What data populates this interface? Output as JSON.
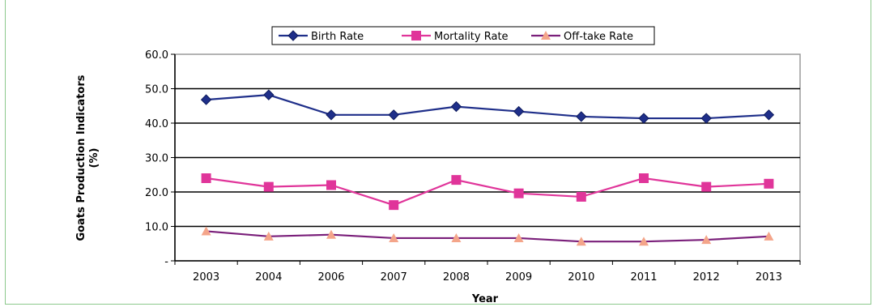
{
  "chart_data": {
    "type": "line",
    "categories": [
      "2003",
      "2004",
      "2006",
      "2007",
      "2008",
      "2009",
      "2010",
      "2011",
      "2012",
      "2013"
    ],
    "series": [
      {
        "name": "Birth Rate",
        "color": "#1f2f8a",
        "marker": "diamond",
        "values": [
          46.8,
          48.2,
          42.4,
          42.4,
          44.8,
          43.4,
          41.9,
          41.4,
          41.4,
          42.4
        ]
      },
      {
        "name": "Mortality Rate",
        "color": "#e0359a",
        "marker": "square",
        "values": [
          24.0,
          21.5,
          22.0,
          16.2,
          23.5,
          19.6,
          18.6,
          24.0,
          21.5,
          22.4
        ]
      },
      {
        "name": "Off-take Rate",
        "color": "#7a1f7a",
        "marker": "triangle",
        "marker_color": "#f4a58a",
        "values": [
          8.6,
          7.1,
          7.6,
          6.6,
          6.6,
          6.6,
          5.6,
          5.6,
          6.1,
          7.1
        ]
      }
    ],
    "xlabel": "Year",
    "ylabel": [
      "Goats Production Indicators",
      "(%)"
    ],
    "ylim": [
      0,
      60
    ],
    "yticks": [
      "-",
      "10.0",
      "20.0",
      "30.0",
      "40.0",
      "50.0",
      "60.0"
    ],
    "grid": "horizontal",
    "legend_position": "top"
  }
}
